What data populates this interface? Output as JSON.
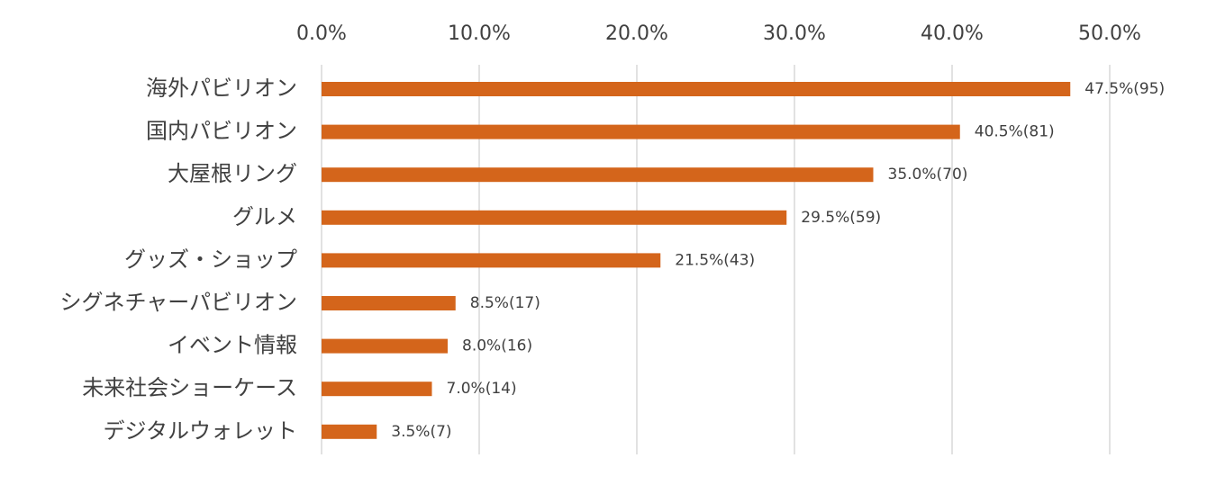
{
  "chart_data": {
    "type": "bar",
    "orientation": "horizontal",
    "categories": [
      "海外パビリオン",
      "国内パビリオン",
      "大屋根リング",
      "グルメ",
      "グッズ・ショップ",
      "シグネチャーパビリオン",
      "イベント情報",
      "未来社会ショーケース",
      "デジタルウォレット"
    ],
    "values": [
      47.5,
      40.5,
      35.0,
      29.5,
      21.5,
      8.5,
      8.0,
      7.0,
      3.5
    ],
    "value_labels": [
      "47.5%(95)",
      "40.5%(81)",
      "35.0%(70)",
      "29.5%(59)",
      "21.5%(43)",
      "8.5%(17)",
      "8.0%(16)",
      "7.0%(14)",
      "3.5%(7)"
    ],
    "color": "#d4651b",
    "xlim": [
      0,
      50
    ],
    "xticks": [
      {
        "value": 0,
        "label": "0.0%"
      },
      {
        "value": 10,
        "label": "10.0%"
      },
      {
        "value": 20,
        "label": "20.0%"
      },
      {
        "value": 30,
        "label": "30.0%"
      },
      {
        "value": 40,
        "label": "40.0%"
      },
      {
        "value": 50,
        "label": "50.0%"
      }
    ],
    "grid": true
  }
}
